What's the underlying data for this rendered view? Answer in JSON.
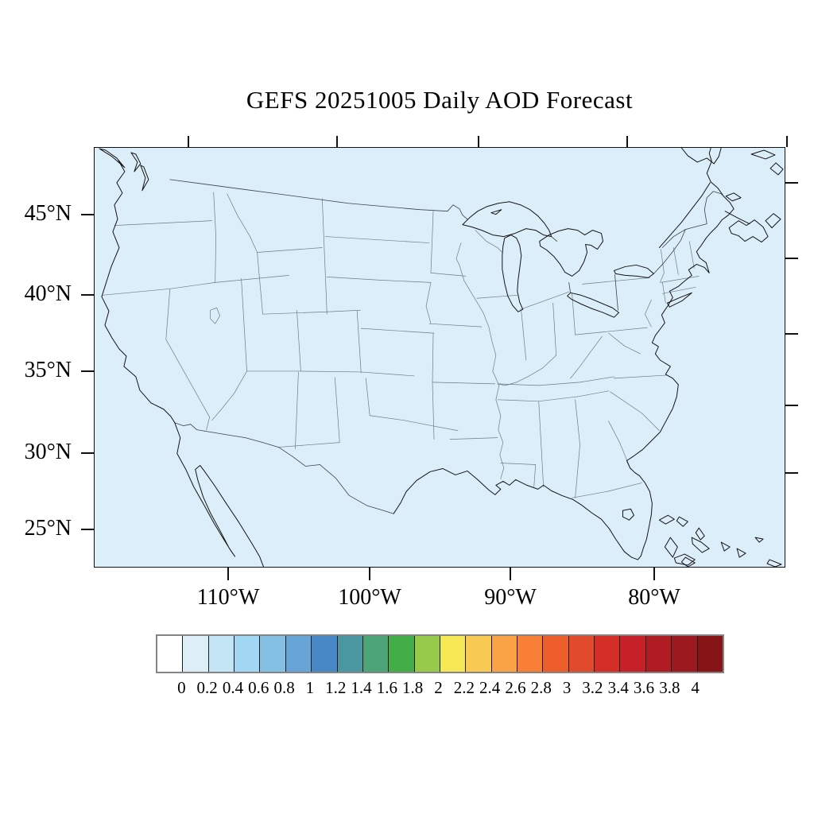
{
  "title": "GEFS 20251005 Daily AOD Forecast",
  "map": {
    "fill_color": "#dceef9",
    "y_axis": {
      "labels": [
        "45°N",
        "40°N",
        "35°N",
        "30°N",
        "25°N"
      ]
    },
    "x_axis": {
      "labels": [
        "110°W",
        "100°W",
        "90°W",
        "80°W"
      ]
    }
  },
  "colorbar": {
    "tick_labels": [
      "0",
      "0.2",
      "0.4",
      "0.6",
      "0.8",
      "1",
      "1.2",
      "1.4",
      "1.6",
      "1.8",
      "2",
      "2.2",
      "2.4",
      "2.6",
      "2.8",
      "3",
      "3.2",
      "3.4",
      "3.6",
      "3.8",
      "4"
    ],
    "colors": [
      "#ffffff",
      "#ddeef9",
      "#c3e5f5",
      "#a1d7f2",
      "#84c0e3",
      "#67a5d8",
      "#4787c6",
      "#4b97a1",
      "#4ca478",
      "#43ae48",
      "#97ca4a",
      "#f5e854",
      "#f8c953",
      "#f9a246",
      "#f97f36",
      "#ee5e2b",
      "#e14a2a",
      "#d42e27",
      "#c62128",
      "#b01c23",
      "#9c1a1f",
      "#871518"
    ]
  },
  "chart_data": {
    "type": "heatmap",
    "title": "GEFS 20251005 Daily AOD Forecast",
    "region": "Contiguous United States with adjacent Canada, Mexico, Bahamas and Cuba",
    "projection_look": "Lambert-conformal-style map, frame ticks on all four sides",
    "lat_tick_labels": [
      "45°N",
      "40°N",
      "35°N",
      "30°N",
      "25°N"
    ],
    "lon_tick_labels": [
      "110°W",
      "100°W",
      "90°W",
      "80°W"
    ],
    "colorbar_levels": [
      0,
      0.2,
      0.4,
      0.6,
      0.8,
      1,
      1.2,
      1.4,
      1.6,
      1.8,
      2,
      2.2,
      2.4,
      2.6,
      2.8,
      3,
      3.2,
      3.4,
      3.6,
      3.8,
      4
    ],
    "colorbar_colors": [
      "#ffffff",
      "#ddeef9",
      "#c3e5f5",
      "#a1d7f2",
      "#84c0e3",
      "#67a5d8",
      "#4787c6",
      "#4b97a1",
      "#4ca478",
      "#43ae48",
      "#97ca4a",
      "#f5e854",
      "#f8c953",
      "#f9a246",
      "#f97f36",
      "#ee5e2b",
      "#e14a2a",
      "#d42e27",
      "#c62128",
      "#b01c23",
      "#9c1a1f",
      "#871518"
    ],
    "displayed_field": "Daily aerosol optical depth forecast; entire displayed domain shaded in the 0–0.2 bin (uniform light blue)"
  }
}
